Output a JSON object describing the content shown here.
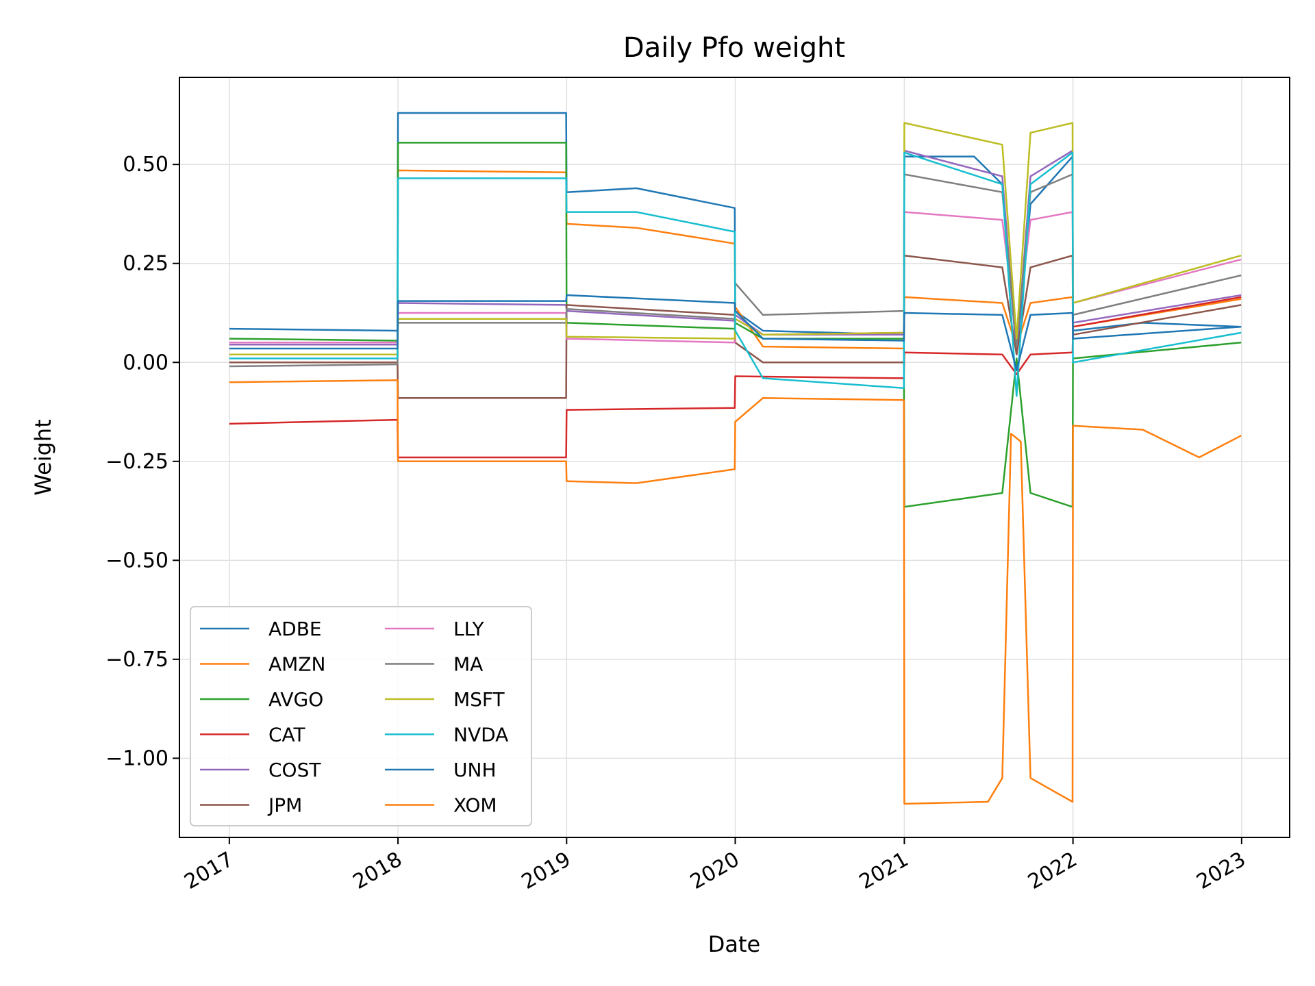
{
  "chart_data": {
    "type": "line",
    "title": "Daily Pfo weight",
    "xlabel": "Date",
    "ylabel": "Weight",
    "x_ticks": [
      "2017",
      "2018",
      "2019",
      "2020",
      "2021",
      "2022",
      "2023"
    ],
    "y_ticks": [
      "0.50",
      "0.25",
      "0.00",
      "−0.25",
      "−0.50",
      "−0.75",
      "−1.00"
    ],
    "y_tick_values": [
      0.5,
      0.25,
      0.0,
      -0.25,
      -0.5,
      -0.75,
      -1.0
    ],
    "xlim": [
      "2016-09-15",
      "2023-04-15"
    ],
    "ylim": [
      -1.2,
      0.72
    ],
    "grid": true,
    "legend_position": "lower-left",
    "legend_columns": 2,
    "series": [
      {
        "name": "ADBE",
        "color": "#1f77b4",
        "points": [
          [
            "2017-01-01",
            0.085
          ],
          [
            "2017-12-31",
            0.08
          ],
          [
            "2018-01-01",
            0.63
          ],
          [
            "2018-12-31",
            0.63
          ],
          [
            "2019-01-01",
            0.43
          ],
          [
            "2019-06-01",
            0.44
          ],
          [
            "2019-12-31",
            0.39
          ],
          [
            "2020-01-01",
            0.13
          ],
          [
            "2020-03-01",
            0.08
          ],
          [
            "2020-12-31",
            0.07
          ],
          [
            "2021-01-01",
            0.52
          ],
          [
            "2021-06-01",
            0.52
          ],
          [
            "2021-08-01",
            0.45
          ],
          [
            "2021-09-01",
            0.02
          ],
          [
            "2021-10-01",
            0.4
          ],
          [
            "2021-12-31",
            0.52
          ],
          [
            "2022-01-01",
            0.08
          ],
          [
            "2022-06-01",
            0.1
          ],
          [
            "2022-12-31",
            0.09
          ]
        ]
      },
      {
        "name": "AMZN",
        "color": "#ff7f0e",
        "points": [
          [
            "2017-01-01",
            0.02
          ],
          [
            "2017-12-31",
            0.02
          ],
          [
            "2018-01-01",
            0.485
          ],
          [
            "2018-12-31",
            0.48
          ],
          [
            "2019-01-01",
            0.35
          ],
          [
            "2019-06-01",
            0.34
          ],
          [
            "2019-12-31",
            0.3
          ],
          [
            "2020-01-01",
            0.14
          ],
          [
            "2020-03-01",
            0.04
          ],
          [
            "2020-12-31",
            0.035
          ],
          [
            "2021-01-01",
            0.165
          ],
          [
            "2021-08-01",
            0.15
          ],
          [
            "2021-09-01",
            0.04
          ],
          [
            "2021-10-01",
            0.15
          ],
          [
            "2021-12-31",
            0.165
          ],
          [
            "2022-01-01",
            0.09
          ],
          [
            "2022-12-31",
            0.16
          ]
        ]
      },
      {
        "name": "AVGO",
        "color": "#2ca02c",
        "points": [
          [
            "2017-01-01",
            0.06
          ],
          [
            "2017-12-31",
            0.055
          ],
          [
            "2018-01-01",
            0.555
          ],
          [
            "2018-12-31",
            0.555
          ],
          [
            "2019-01-01",
            0.1
          ],
          [
            "2019-12-31",
            0.085
          ],
          [
            "2020-01-01",
            0.1
          ],
          [
            "2020-03-01",
            0.06
          ],
          [
            "2020-12-31",
            0.06
          ],
          [
            "2021-01-01",
            -0.365
          ],
          [
            "2021-08-01",
            -0.33
          ],
          [
            "2021-09-01",
            0.01
          ],
          [
            "2021-10-01",
            -0.33
          ],
          [
            "2021-12-31",
            -0.365
          ],
          [
            "2022-01-01",
            0.01
          ],
          [
            "2022-12-31",
            0.05
          ]
        ]
      },
      {
        "name": "CAT",
        "color": "#d62728",
        "points": [
          [
            "2017-01-01",
            -0.155
          ],
          [
            "2017-12-31",
            -0.145
          ],
          [
            "2018-01-01",
            -0.24
          ],
          [
            "2018-12-31",
            -0.24
          ],
          [
            "2019-01-01",
            -0.12
          ],
          [
            "2019-12-31",
            -0.115
          ],
          [
            "2020-01-01",
            -0.035
          ],
          [
            "2020-12-31",
            -0.04
          ],
          [
            "2021-01-01",
            0.025
          ],
          [
            "2021-08-01",
            0.02
          ],
          [
            "2021-09-01",
            -0.03
          ],
          [
            "2021-10-01",
            0.02
          ],
          [
            "2021-12-31",
            0.025
          ],
          [
            "2022-01-01",
            0.09
          ],
          [
            "2022-12-31",
            0.165
          ]
        ]
      },
      {
        "name": "COST",
        "color": "#9467bd",
        "points": [
          [
            "2017-01-01",
            0.045
          ],
          [
            "2017-12-31",
            0.045
          ],
          [
            "2018-01-01",
            0.15
          ],
          [
            "2018-12-31",
            0.145
          ],
          [
            "2019-01-01",
            0.13
          ],
          [
            "2019-12-31",
            0.105
          ],
          [
            "2020-01-01",
            0.12
          ],
          [
            "2020-03-01",
            0.07
          ],
          [
            "2020-12-31",
            0.07
          ],
          [
            "2021-01-01",
            0.535
          ],
          [
            "2021-08-01",
            0.47
          ],
          [
            "2021-09-01",
            0.02
          ],
          [
            "2021-10-01",
            0.47
          ],
          [
            "2021-12-31",
            0.535
          ],
          [
            "2022-01-01",
            0.1
          ],
          [
            "2022-12-31",
            0.17
          ]
        ]
      },
      {
        "name": "JPM",
        "color": "#8c564b",
        "points": [
          [
            "2017-01-01",
            0.0
          ],
          [
            "2017-12-31",
            0.0
          ],
          [
            "2018-01-01",
            -0.09
          ],
          [
            "2018-12-31",
            -0.09
          ],
          [
            "2019-01-01",
            0.145
          ],
          [
            "2019-12-31",
            0.12
          ],
          [
            "2020-01-01",
            0.05
          ],
          [
            "2020-03-01",
            0.0
          ],
          [
            "2020-12-31",
            0.0
          ],
          [
            "2021-01-01",
            0.27
          ],
          [
            "2021-08-01",
            0.24
          ],
          [
            "2021-09-01",
            0.02
          ],
          [
            "2021-10-01",
            0.24
          ],
          [
            "2021-12-31",
            0.27
          ],
          [
            "2022-01-01",
            0.07
          ],
          [
            "2022-12-31",
            0.145
          ]
        ]
      },
      {
        "name": "LLY",
        "color": "#e377c2",
        "points": [
          [
            "2017-01-01",
            0.05
          ],
          [
            "2017-12-31",
            0.05
          ],
          [
            "2018-01-01",
            0.125
          ],
          [
            "2018-12-31",
            0.125
          ],
          [
            "2019-01-01",
            0.06
          ],
          [
            "2019-12-31",
            0.05
          ],
          [
            "2020-01-01",
            0.11
          ],
          [
            "2020-03-01",
            0.07
          ],
          [
            "2020-12-31",
            0.075
          ],
          [
            "2021-01-01",
            0.38
          ],
          [
            "2021-08-01",
            0.36
          ],
          [
            "2021-09-01",
            0.07
          ],
          [
            "2021-10-01",
            0.36
          ],
          [
            "2021-12-31",
            0.38
          ],
          [
            "2022-01-01",
            0.15
          ],
          [
            "2022-12-31",
            0.26
          ]
        ]
      },
      {
        "name": "MA",
        "color": "#7f7f7f",
        "points": [
          [
            "2017-01-01",
            -0.01
          ],
          [
            "2017-12-31",
            -0.005
          ],
          [
            "2018-01-01",
            0.1
          ],
          [
            "2018-12-31",
            0.1
          ],
          [
            "2019-01-01",
            0.135
          ],
          [
            "2019-12-31",
            0.11
          ],
          [
            "2020-01-01",
            0.2
          ],
          [
            "2020-03-01",
            0.12
          ],
          [
            "2020-12-31",
            0.13
          ],
          [
            "2021-01-01",
            0.475
          ],
          [
            "2021-08-01",
            0.43
          ],
          [
            "2021-09-01",
            0.04
          ],
          [
            "2021-10-01",
            0.43
          ],
          [
            "2021-12-31",
            0.475
          ],
          [
            "2022-01-01",
            0.12
          ],
          [
            "2022-12-31",
            0.22
          ]
        ]
      },
      {
        "name": "MSFT",
        "color": "#bcbd22",
        "points": [
          [
            "2017-01-01",
            0.02
          ],
          [
            "2017-12-31",
            0.02
          ],
          [
            "2018-01-01",
            0.11
          ],
          [
            "2018-12-31",
            0.11
          ],
          [
            "2019-01-01",
            0.065
          ],
          [
            "2019-12-31",
            0.06
          ],
          [
            "2020-01-01",
            0.11
          ],
          [
            "2020-03-01",
            0.07
          ],
          [
            "2020-12-31",
            0.075
          ],
          [
            "2021-01-01",
            0.605
          ],
          [
            "2021-08-01",
            0.55
          ],
          [
            "2021-09-01",
            0.06
          ],
          [
            "2021-10-01",
            0.58
          ],
          [
            "2021-12-31",
            0.605
          ],
          [
            "2022-01-01",
            0.15
          ],
          [
            "2022-12-31",
            0.27
          ]
        ]
      },
      {
        "name": "NVDA",
        "color": "#17becf",
        "points": [
          [
            "2017-01-01",
            0.01
          ],
          [
            "2017-12-31",
            0.01
          ],
          [
            "2018-01-01",
            0.465
          ],
          [
            "2018-12-31",
            0.465
          ],
          [
            "2019-01-01",
            0.38
          ],
          [
            "2019-06-01",
            0.38
          ],
          [
            "2019-12-31",
            0.33
          ],
          [
            "2020-01-01",
            0.08
          ],
          [
            "2020-03-01",
            -0.04
          ],
          [
            "2020-12-31",
            -0.065
          ],
          [
            "2021-01-01",
            0.53
          ],
          [
            "2021-08-01",
            0.45
          ],
          [
            "2021-09-01",
            -0.085
          ],
          [
            "2021-10-01",
            0.45
          ],
          [
            "2021-12-31",
            0.53
          ],
          [
            "2022-01-01",
            0.0
          ],
          [
            "2022-12-31",
            0.075
          ]
        ]
      },
      {
        "name": "UNH",
        "color": "#1f77b4",
        "points": [
          [
            "2017-01-01",
            0.035
          ],
          [
            "2017-12-31",
            0.035
          ],
          [
            "2018-01-01",
            0.155
          ],
          [
            "2018-12-31",
            0.155
          ],
          [
            "2019-01-01",
            0.17
          ],
          [
            "2019-12-31",
            0.15
          ],
          [
            "2020-01-01",
            0.13
          ],
          [
            "2020-03-01",
            0.06
          ],
          [
            "2020-12-31",
            0.055
          ],
          [
            "2021-01-01",
            0.125
          ],
          [
            "2021-08-01",
            0.12
          ],
          [
            "2021-09-01",
            -0.02
          ],
          [
            "2021-10-01",
            0.12
          ],
          [
            "2021-12-31",
            0.125
          ],
          [
            "2022-01-01",
            0.06
          ],
          [
            "2022-12-31",
            0.09
          ]
        ]
      },
      {
        "name": "XOM",
        "color": "#ff7f0e",
        "points": [
          [
            "2017-01-01",
            -0.05
          ],
          [
            "2017-12-31",
            -0.045
          ],
          [
            "2018-01-01",
            -0.25
          ],
          [
            "2018-12-31",
            -0.25
          ],
          [
            "2019-01-01",
            -0.3
          ],
          [
            "2019-06-01",
            -0.305
          ],
          [
            "2019-12-31",
            -0.27
          ],
          [
            "2020-01-01",
            -0.15
          ],
          [
            "2020-03-01",
            -0.09
          ],
          [
            "2020-12-31",
            -0.095
          ],
          [
            "2021-01-01",
            -1.115
          ],
          [
            "2021-07-01",
            -1.11
          ],
          [
            "2021-08-01",
            -1.05
          ],
          [
            "2021-08-20",
            -0.18
          ],
          [
            "2021-09-10",
            -0.2
          ],
          [
            "2021-10-01",
            -1.05
          ],
          [
            "2021-12-31",
            -1.11
          ],
          [
            "2022-01-01",
            -0.16
          ],
          [
            "2022-06-01",
            -0.17
          ],
          [
            "2022-10-01",
            -0.24
          ],
          [
            "2022-12-31",
            -0.185
          ]
        ]
      }
    ]
  }
}
